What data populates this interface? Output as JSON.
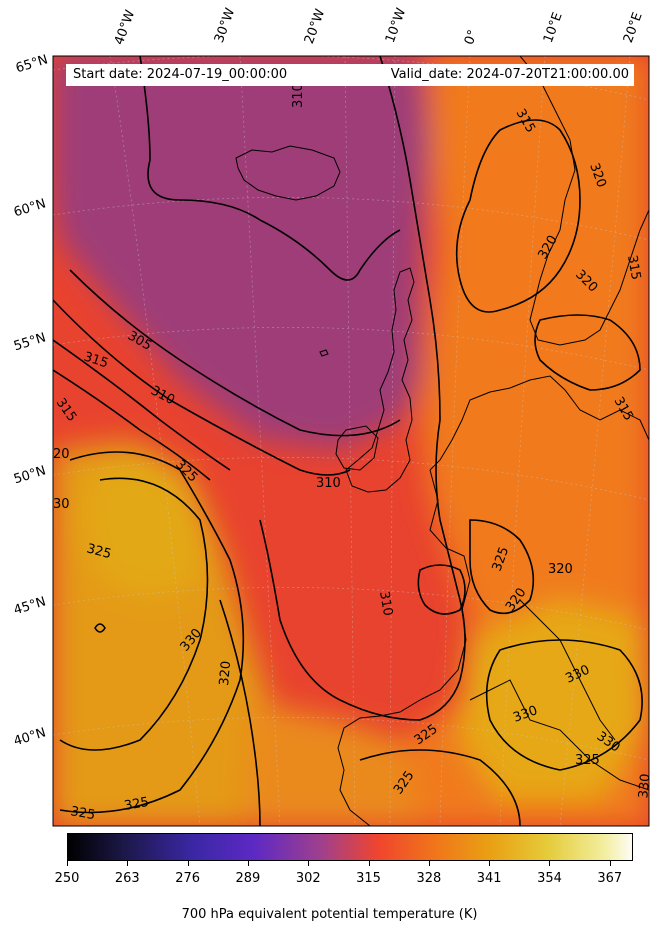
{
  "map": {
    "start_label": "Start date: 2024-07-19_00:00:00",
    "valid_label": "Valid_date: 2024-07-20T21:00:00.00",
    "longitude_labels": [
      "40°W",
      "30°W",
      "20°W",
      "10°W",
      "0°",
      "10°E",
      "20°E"
    ],
    "latitude_labels": [
      "65°N",
      "60°N",
      "55°N",
      "50°N",
      "45°N",
      "40°N"
    ],
    "contour_labels": [
      "305",
      "310",
      "310",
      "310",
      "310",
      "315",
      "315",
      "315",
      "315",
      "315",
      "320",
      "320",
      "320",
      "320",
      "320",
      "320",
      "325",
      "325",
      "325",
      "325",
      "325",
      "325",
      "325",
      "325",
      "330",
      "330",
      "330",
      "330",
      "330",
      "30",
      "20"
    ],
    "colors": {
      "cold": "#9c3e78",
      "mid": "#e64535",
      "warm": "#f07a1e",
      "hot": "#e4a012"
    }
  },
  "colorbar": {
    "title": "700 hPa equivalent potential temperature (K)",
    "ticks": [
      "250",
      "263",
      "276",
      "289",
      "302",
      "315",
      "328",
      "341",
      "354",
      "367"
    ],
    "range": [
      250,
      372
    ],
    "colormap": "CMRmap"
  }
}
